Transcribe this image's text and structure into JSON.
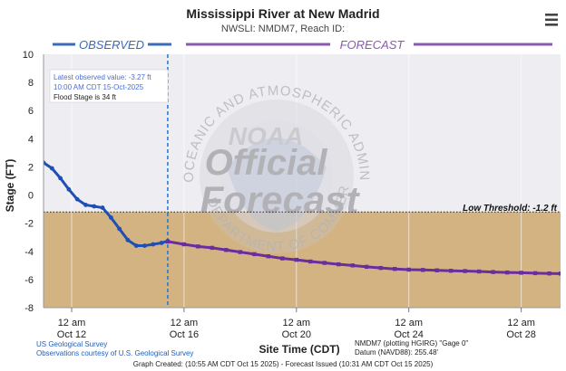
{
  "chart_data": {
    "type": "line",
    "title": "Mississippi River at New Madrid",
    "subtitle": "NWSLI: NMDM7, Reach ID:",
    "xlabel": "Site Time (CDT)",
    "ylabel": "Stage (FT)",
    "ylim": [
      -8,
      10
    ],
    "yticks": [
      -8,
      -6,
      -4,
      -2,
      0,
      2,
      4,
      6,
      8,
      10
    ],
    "x_tick_labels": [
      {
        "day": 12,
        "line1": "12 am",
        "line2": "Oct 12"
      },
      {
        "day": 16,
        "line1": "12 am",
        "line2": "Oct 16"
      },
      {
        "day": 20,
        "line1": "12 am",
        "line2": "Oct 20"
      },
      {
        "day": 24,
        "line1": "12 am",
        "line2": "Oct 24"
      },
      {
        "day": 28,
        "line1": "12 am",
        "line2": "Oct 28"
      }
    ],
    "xlim_days": [
      11.0,
      29.4
    ],
    "issue_time_day": 15.42,
    "observed_label": "OBSERVED",
    "forecast_label": "FORECAST",
    "low_threshold": {
      "value": -1.2,
      "label": "Low Threshold: -1.2 ft"
    },
    "annotation": {
      "latest_label": "Latest observed value: -3.27 ft",
      "latest_time": "10:00 AM CDT 15-Oct-2025",
      "flood_stage": "Flood Stage is 34 ft"
    },
    "series": [
      {
        "name": "Observed",
        "color": "#1f4fb4",
        "points": [
          [
            11.0,
            2.3
          ],
          [
            11.3,
            1.9
          ],
          [
            11.6,
            1.2
          ],
          [
            11.9,
            0.4
          ],
          [
            12.2,
            -0.3
          ],
          [
            12.5,
            -0.7
          ],
          [
            12.8,
            -0.8
          ],
          [
            13.1,
            -0.9
          ],
          [
            13.4,
            -1.6
          ],
          [
            13.7,
            -2.4
          ],
          [
            14.0,
            -3.2
          ],
          [
            14.3,
            -3.6
          ],
          [
            14.6,
            -3.6
          ],
          [
            14.9,
            -3.5
          ],
          [
            15.2,
            -3.4
          ],
          [
            15.42,
            -3.27
          ]
        ]
      },
      {
        "name": "Forecast",
        "color": "#6a2c9f",
        "points": [
          [
            15.42,
            -3.3
          ],
          [
            16.0,
            -3.5
          ],
          [
            16.5,
            -3.65
          ],
          [
            17.0,
            -3.75
          ],
          [
            17.5,
            -3.9
          ],
          [
            18.0,
            -4.05
          ],
          [
            18.5,
            -4.2
          ],
          [
            19.0,
            -4.35
          ],
          [
            19.5,
            -4.5
          ],
          [
            20.0,
            -4.6
          ],
          [
            20.5,
            -4.72
          ],
          [
            21.0,
            -4.82
          ],
          [
            21.5,
            -4.92
          ],
          [
            22.0,
            -5.0
          ],
          [
            22.5,
            -5.1
          ],
          [
            23.0,
            -5.18
          ],
          [
            23.5,
            -5.25
          ],
          [
            24.0,
            -5.3
          ],
          [
            24.5,
            -5.32
          ],
          [
            25.0,
            -5.35
          ],
          [
            25.5,
            -5.38
          ],
          [
            26.0,
            -5.4
          ],
          [
            26.5,
            -5.43
          ],
          [
            27.0,
            -5.47
          ],
          [
            27.5,
            -5.5
          ],
          [
            28.0,
            -5.52
          ],
          [
            28.5,
            -5.55
          ],
          [
            29.0,
            -5.57
          ],
          [
            29.4,
            -5.58
          ]
        ]
      }
    ],
    "colors": {
      "observed_band": "#3b6ab8",
      "forecast_band": "#8a5ab0",
      "low_fill": "#d4b383",
      "upper_fill": "#eeedf2",
      "issue_line": "#1f78d1"
    },
    "watermark": {
      "word1": "Official",
      "word2": "Forecast",
      "logo": "NOAA",
      "ring_top": "NATIONAL OCEANIC AND ATMOSPHERIC ADMINISTRATION",
      "ring_bottom": "U.S. DEPARTMENT OF COMMERCE"
    },
    "footer": {
      "usgs_line1": "US Geological Survey",
      "usgs_line2": "Observations courtesy of U.S. Geological Survey",
      "datum_line1": "NMDM7 (plotting HGIRG) \"Gage 0\"",
      "datum_line2": "Datum (NAVD88): 255.48'",
      "created": "Graph Created: (10:55 AM CDT Oct 15 2025) - Forecast Issued (10:31 AM CDT Oct 15 2025)"
    }
  }
}
